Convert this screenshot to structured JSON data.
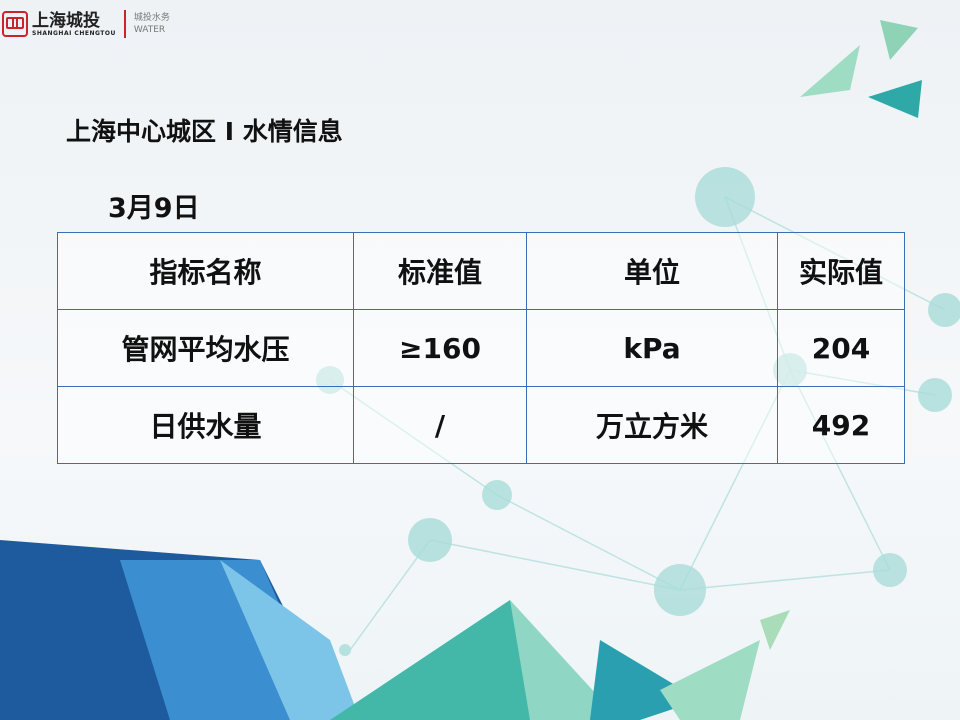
{
  "logo": {
    "name_cn": "上海城投",
    "name_en": "SHANGHAI CHENGTOU",
    "sub_cn": "城投水务",
    "sub_en": "WATER"
  },
  "title": "上海中心城区 I 水情信息",
  "date": "3月9日",
  "table": {
    "headers": [
      "指标名称",
      "标准值",
      "单位",
      "实际值"
    ],
    "rows": [
      [
        "管网平均水压",
        "≥160",
        "kPa",
        "204"
      ],
      [
        "日供水量",
        "/",
        "万立方米",
        "492"
      ]
    ]
  },
  "colors": {
    "border": "#3a6fb5",
    "brand_red": "#c9242b",
    "accent_teal": "#3fb8a8"
  }
}
